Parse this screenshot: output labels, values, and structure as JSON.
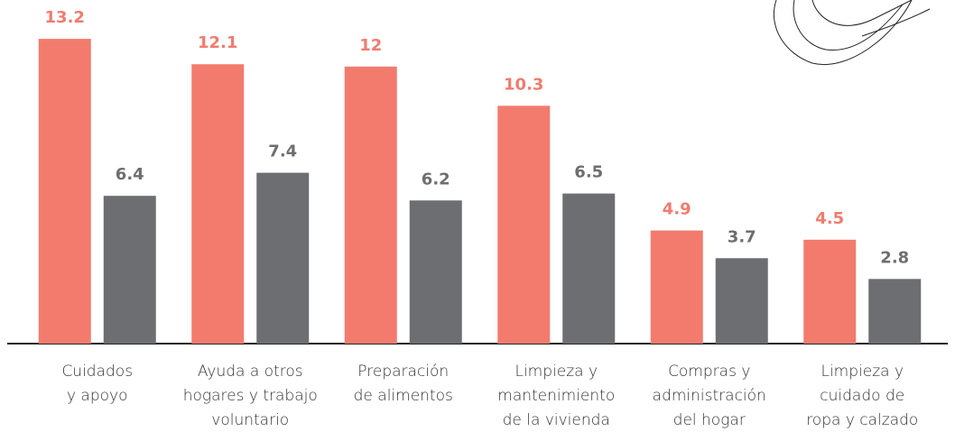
{
  "chart_data": {
    "type": "bar",
    "categories": [
      "Cuidados\ny apoyo",
      "Ayuda a otros\nhogares y trabajo\nvoluntario",
      "Preparación\nde alimentos",
      "Limpieza y\nmantenimiento\nde la vivienda",
      "Compras y\nadministración\ndel hogar",
      "Limpieza y\ncuidado de\nropa y calzado"
    ],
    "series": [
      {
        "color": "#f27b6e",
        "values": [
          13.2,
          12.1,
          12,
          10.3,
          4.9,
          4.5
        ]
      },
      {
        "color": "#6d6e71",
        "values": [
          6.4,
          7.4,
          6.2,
          6.5,
          3.7,
          2.8
        ]
      }
    ],
    "ylim": [
      0,
      15
    ]
  }
}
